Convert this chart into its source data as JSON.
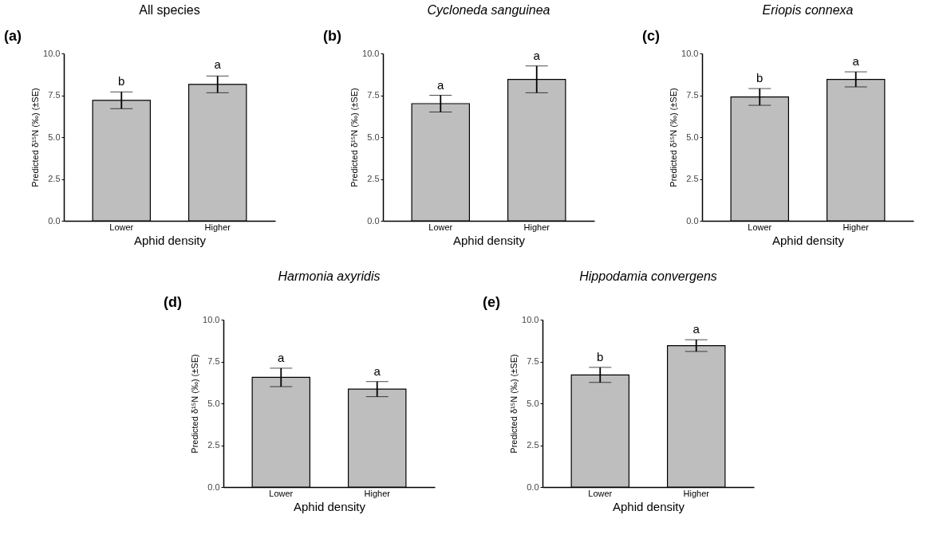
{
  "chart_data": [
    {
      "type": "bar",
      "title": "All species",
      "annotations": [
        "(a)",
        {
          "text": "b",
          "x": "Lower",
          "y": 7.7
        },
        {
          "text": "a",
          "x": "Higher",
          "y": 8.7
        }
      ],
      "xlabel": "Aphid density",
      "ylabel": "Predicted δ¹⁵N (‰) (±SE)",
      "categories": [
        "Lower",
        "Higher"
      ],
      "values": [
        7.2,
        8.15
      ],
      "errors": [
        0.5,
        0.5
      ],
      "color": "#bebebe",
      "ylim": [
        0,
        10
      ],
      "yticks": [
        {
          "value": 0,
          "label": "0.0"
        },
        {
          "value": 2.5,
          "label": "2.5"
        },
        {
          "value": 5,
          "label": "5.0"
        },
        {
          "value": 7.5,
          "label": "7.5"
        },
        {
          "value": 10,
          "label": "10.0"
        }
      ],
      "grid": false
    },
    {
      "type": "bar",
      "title": "Cycloneda sanguinea",
      "annotations": [
        "(b)",
        {
          "text": "a",
          "x": "Lower",
          "y": 7.5
        },
        {
          "text": "a",
          "x": "Higher",
          "y": 9.25
        }
      ],
      "xlabel": "Aphid density",
      "ylabel": "Predicted δ¹⁵N (‰) (±SE)",
      "categories": [
        "Lower",
        "Higher"
      ],
      "values": [
        7.0,
        8.45
      ],
      "errors": [
        0.5,
        0.8
      ],
      "color": "#bebebe",
      "ylim": [
        0,
        10
      ],
      "yticks": [
        {
          "value": 0,
          "label": "0.0"
        },
        {
          "value": 2.5,
          "label": "2.5"
        },
        {
          "value": 5,
          "label": "5.0"
        },
        {
          "value": 7.5,
          "label": "7.5"
        },
        {
          "value": 10,
          "label": "10.0"
        }
      ],
      "grid": false
    },
    {
      "type": "bar",
      "title": "Eriopis connexa",
      "annotations": [
        "(c)",
        {
          "text": "b",
          "x": "Lower",
          "y": 7.9
        },
        {
          "text": "a",
          "x": "Higher",
          "y": 8.9
        }
      ],
      "xlabel": "Aphid density",
      "ylabel": "Predicted δ¹⁵N (‰) (±SE)",
      "categories": [
        "Lower",
        "Higher"
      ],
      "values": [
        7.4,
        8.45
      ],
      "errors": [
        0.5,
        0.45
      ],
      "color": "#bebebe",
      "ylim": [
        0,
        10
      ],
      "yticks": [
        {
          "value": 0,
          "label": "0.0"
        },
        {
          "value": 2.5,
          "label": "2.5"
        },
        {
          "value": 5,
          "label": "5.0"
        },
        {
          "value": 7.5,
          "label": "7.5"
        },
        {
          "value": 10,
          "label": "10.0"
        }
      ],
      "grid": false
    },
    {
      "type": "bar",
      "title": "Harmonia axyridis",
      "annotations": [
        "(d)",
        {
          "text": "a",
          "x": "Lower",
          "y": 7.1
        },
        {
          "text": "a",
          "x": "Higher",
          "y": 6.3
        }
      ],
      "xlabel": "Aphid density",
      "ylabel": "Predicted δ¹⁵N (‰) (±SE)",
      "categories": [
        "Lower",
        "Higher"
      ],
      "values": [
        6.55,
        5.85
      ],
      "errors": [
        0.55,
        0.45
      ],
      "color": "#bebebe",
      "ylim": [
        0,
        10
      ],
      "yticks": [
        {
          "value": 0,
          "label": "0.0"
        },
        {
          "value": 2.5,
          "label": "2.5"
        },
        {
          "value": 5,
          "label": "5.0"
        },
        {
          "value": 7.5,
          "label": "7.5"
        },
        {
          "value": 10,
          "label": "10.0"
        }
      ],
      "grid": false
    },
    {
      "type": "bar",
      "title": "Hippodamia convergens",
      "annotations": [
        "(e)",
        {
          "text": "b",
          "x": "Lower",
          "y": 7.15
        },
        {
          "text": "a",
          "x": "Higher",
          "y": 8.8
        }
      ],
      "xlabel": "Aphid density",
      "ylabel": "Predicted δ¹⁵N (‰) (±SE)",
      "categories": [
        "Lower",
        "Higher"
      ],
      "values": [
        6.7,
        8.45
      ],
      "errors": [
        0.45,
        0.35
      ],
      "color": "#bebebe",
      "ylim": [
        0,
        10
      ],
      "yticks": [
        {
          "value": 0,
          "label": "0.0"
        },
        {
          "value": 2.5,
          "label": "2.5"
        },
        {
          "value": 5,
          "label": "5.0"
        },
        {
          "value": 7.5,
          "label": "7.5"
        },
        {
          "value": 10,
          "label": "10.0"
        }
      ],
      "grid": false
    }
  ]
}
